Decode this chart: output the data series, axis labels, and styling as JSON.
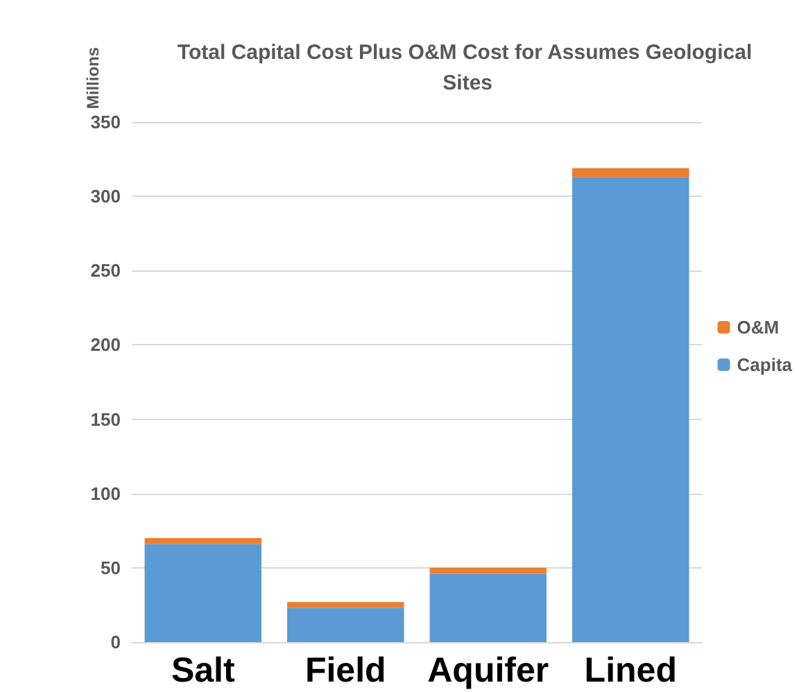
{
  "chart_data": {
    "type": "bar",
    "title": "Total Capital Cost Plus O&M Cost for Assumes Geological Sites",
    "ylabel": "Millions",
    "categories": [
      "Salt",
      "Field",
      "Aquifer",
      "Lined"
    ],
    "stacked": true,
    "series": [
      {
        "name": "Capita",
        "color": "#5b9bd5",
        "values": [
          66,
          23,
          46,
          313
        ]
      },
      {
        "name": "O&M",
        "color": "#ed7d31",
        "values": [
          4,
          4,
          4,
          6
        ]
      }
    ],
    "ylim": [
      0,
      350
    ],
    "yticks": [
      0,
      50,
      100,
      150,
      200,
      250,
      300,
      350
    ],
    "grid": "y",
    "legend": "right"
  }
}
